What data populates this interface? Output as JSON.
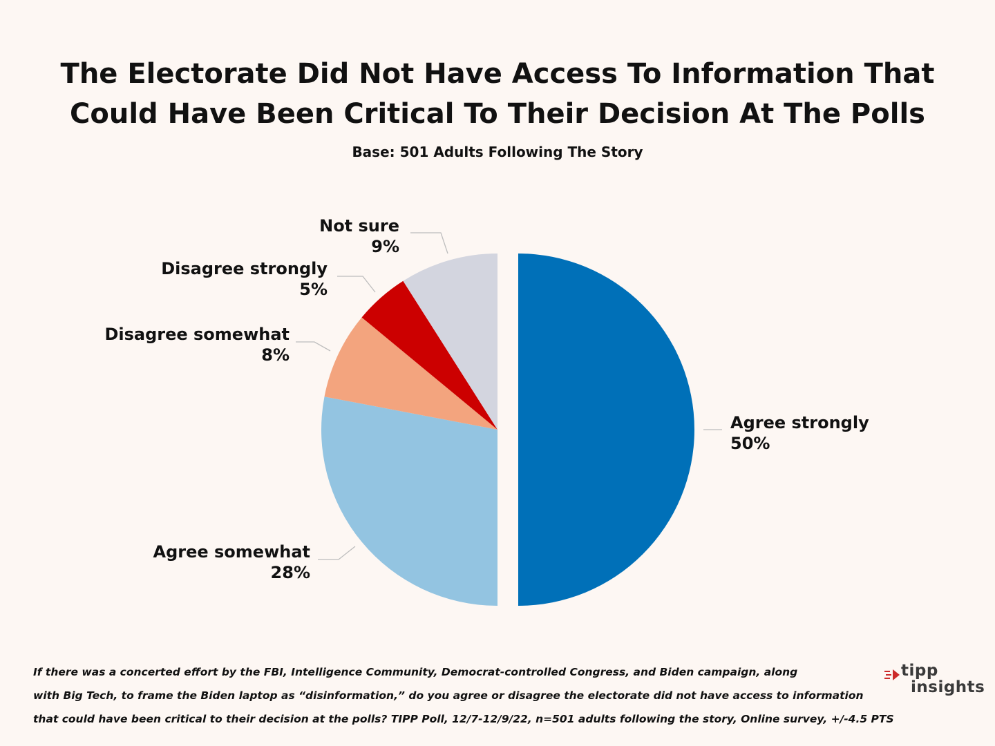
{
  "chart_data": {
    "type": "pie",
    "title_lines": [
      "The Electorate Did Not Have Access To Information That",
      "Could Have Been Critical To Their Decision At The Polls"
    ],
    "subtitle": "Base: 501 Adults Following The Story",
    "categories": [
      "Agree strongly",
      "Agree somewhat",
      "Disagree somewhat",
      "Disagree strongly",
      "Not sure"
    ],
    "values": [
      50,
      28,
      8,
      5,
      9
    ],
    "value_labels": [
      "50%",
      "28%",
      "8%",
      "5%",
      "9%"
    ],
    "colors": [
      "#0070b8",
      "#93c4e1",
      "#f3a47e",
      "#cc0000",
      "#d3d5df"
    ],
    "exploded_slice": "Agree strongly",
    "start": "12 o'clock, clockwise"
  },
  "footnote": {
    "lines": [
      "If there was a concerted effort by the FBI, Intelligence Community, Democrat-controlled Congress, and Biden campaign, along",
      "with Big Tech, to frame the Biden laptop as “disinformation,” do you agree or disagree the electorate did not have access to information",
      "that could have been critical to their decision at the polls?  TIPP Poll, 12/7-12/9/22, n=501 adults following the story, Online survey, +/-4.5 PTS"
    ]
  },
  "logo": {
    "line1": "tipp",
    "line2": "insights"
  }
}
